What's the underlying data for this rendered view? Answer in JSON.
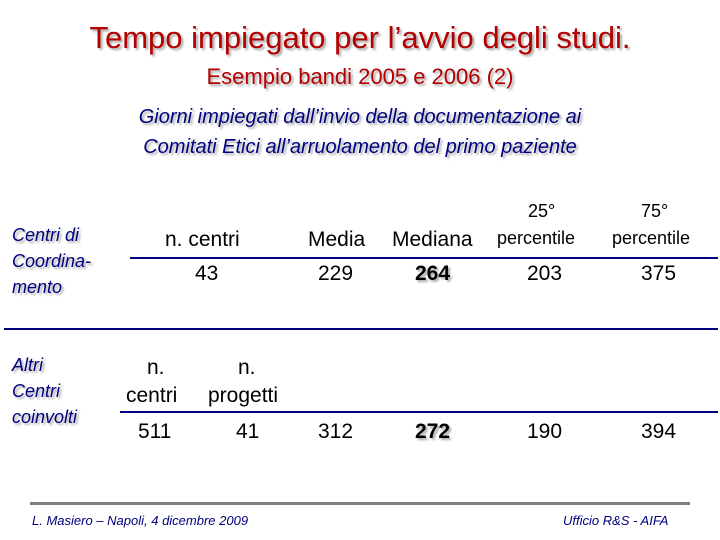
{
  "title": "Tempo impiegato per l’avvio degli studi.",
  "subtitle": "Esempio bandi 2005 e 2006 (2)",
  "description_line1": "Giorni impiegati dall’invio della documentazione ai",
  "description_line2": "Comitati Etici all’arruolamento del primo paziente",
  "headers": {
    "pct25_top": "25°",
    "pct75_top": "75°",
    "n_centri": "n. centri",
    "media": "Media",
    "mediana": "Mediana",
    "pct25_bottom": "percentile",
    "pct75_bottom": "percentile"
  },
  "rows": [
    {
      "label_lines": [
        "Centri di",
        "Coordina-",
        "mento"
      ],
      "n_centri": "43",
      "media": "229",
      "mediana": "264",
      "pct25": "203",
      "pct75": "375"
    },
    {
      "label_lines": [
        "Altri",
        "Centri",
        "coinvolti"
      ],
      "hdr_ncentri_1": "n.",
      "hdr_ncentri_2": "centri",
      "hdr_nprogetti_1": "n.",
      "hdr_nprogetti_2": "progetti",
      "n_centri": "511",
      "n_progetti": "41",
      "media": "312",
      "mediana": "272",
      "pct25": "190",
      "pct75": "394"
    }
  ],
  "footer": {
    "left": "L. Masiero – Napoli, 4 dicembre 2009",
    "right": "Ufficio R&S - AIFA"
  },
  "colors": {
    "title": "#b30000",
    "accent": "#000080",
    "footer_rule": "#7f7f7f"
  }
}
